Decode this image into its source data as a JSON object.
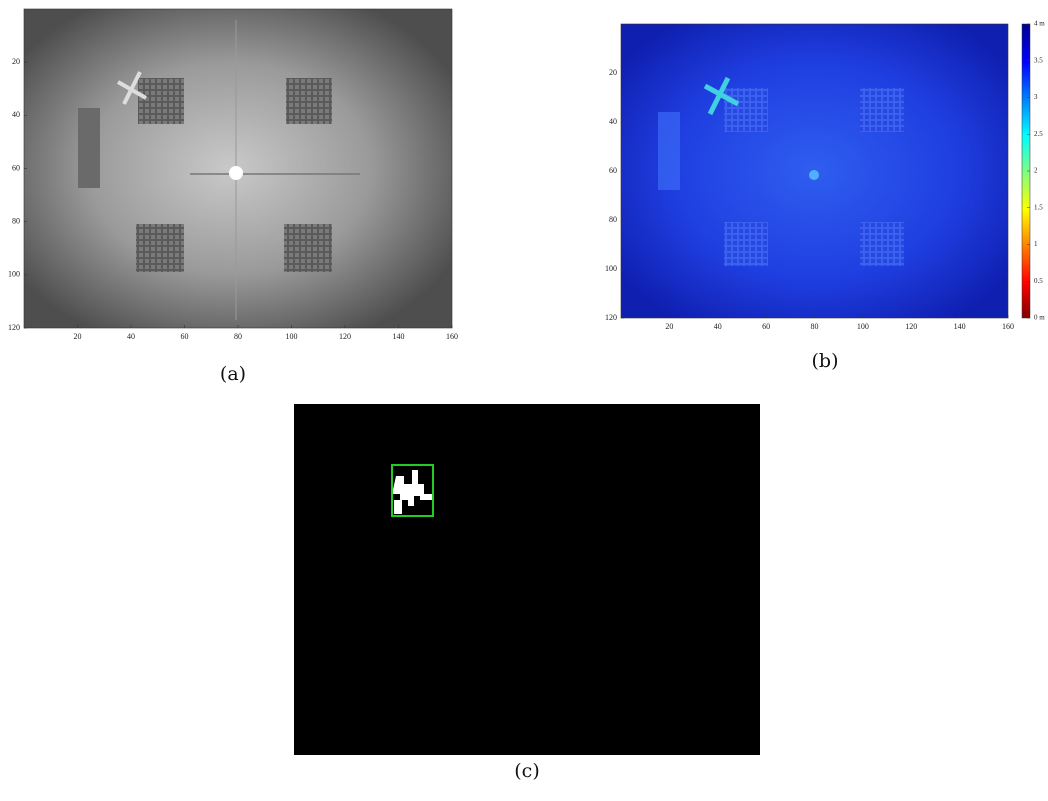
{
  "panels": [
    {
      "caption": "(a)",
      "xlim": [
        0,
        160
      ],
      "ylim": [
        0,
        120
      ],
      "xticks": [
        20,
        40,
        60,
        80,
        100,
        120,
        140,
        160
      ],
      "yticks": [
        20,
        40,
        60,
        80,
        100,
        120
      ]
    },
    {
      "caption": "(b)",
      "xlim": [
        0,
        160
      ],
      "ylim": [
        0,
        120
      ],
      "xticks": [
        20,
        40,
        60,
        80,
        100,
        120,
        140,
        160
      ],
      "yticks": [
        20,
        40,
        60,
        80,
        100,
        120
      ],
      "colorbar": {
        "lim": [
          0,
          4
        ],
        "ticks": [
          {
            "value": 4,
            "label": "4 m"
          },
          3.5,
          3,
          2.5,
          2,
          1.5,
          1,
          0.5,
          {
            "value": 0,
            "label": "0 m"
          }
        ]
      }
    },
    {
      "caption": "(c)"
    }
  ]
}
